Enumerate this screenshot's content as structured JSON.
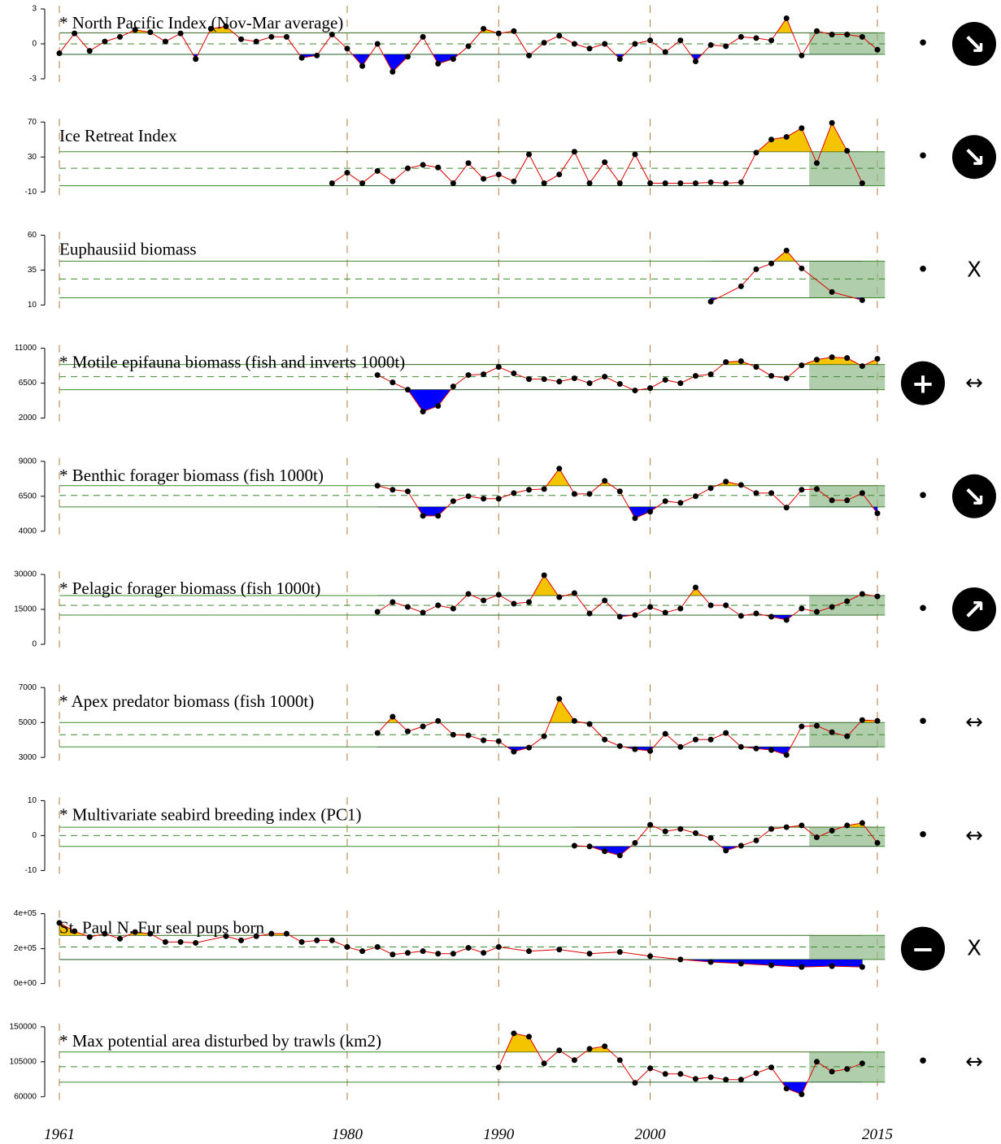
{
  "x_axis": {
    "xlim": [
      1961,
      2015
    ],
    "xticks": [
      1961,
      1980,
      1990,
      2000,
      2015
    ]
  },
  "chart_data": [
    {
      "type": "line",
      "title": "* North Pacific Index (Nov-Mar average)",
      "x": [
        1961,
        1962,
        1963,
        1964,
        1965,
        1966,
        1967,
        1968,
        1969,
        1970,
        1971,
        1972,
        1973,
        1974,
        1975,
        1976,
        1977,
        1978,
        1979,
        1980,
        1981,
        1982,
        1983,
        1984,
        1985,
        1986,
        1987,
        1988,
        1989,
        1990,
        1991,
        1992,
        1993,
        1994,
        1995,
        1996,
        1997,
        1998,
        1999,
        2000,
        2001,
        2002,
        2003,
        2004,
        2005,
        2006,
        2007,
        2008,
        2009,
        2010,
        2011,
        2012,
        2013,
        2014,
        2015
      ],
      "values": [
        -0.8,
        0.9,
        -0.6,
        0.2,
        0.6,
        1.2,
        1.0,
        0.2,
        0.9,
        -1.3,
        1.3,
        1.5,
        0.4,
        0.2,
        0.6,
        0.6,
        -1.2,
        -1.0,
        0.8,
        -0.4,
        -1.9,
        0.0,
        -2.4,
        -1.1,
        0.6,
        -1.7,
        -1.3,
        -0.2,
        1.3,
        0.9,
        1.1,
        -1.0,
        0.1,
        0.7,
        0.0,
        -0.4,
        0.0,
        -1.3,
        0.0,
        0.3,
        -0.7,
        0.3,
        -1.5,
        -0.1,
        -0.2,
        0.6,
        0.5,
        0.3,
        2.2,
        -1.0,
        1.1,
        0.8,
        0.8,
        0.6,
        -0.5
      ],
      "ylim": [
        -3,
        3
      ],
      "yticks": [
        -3,
        0,
        3
      ],
      "mean": 0,
      "upper": 0.95,
      "lower": -0.9,
      "status": {
        "symbol": "•",
        "circled": false
      },
      "trend": {
        "symbol": "↘",
        "circled": true
      }
    },
    {
      "type": "line",
      "title": "Ice Retreat Index",
      "x": [
        1979,
        1980,
        1981,
        1982,
        1983,
        1984,
        1985,
        1986,
        1987,
        1988,
        1989,
        1990,
        1991,
        1992,
        1993,
        1994,
        1995,
        1996,
        1997,
        1998,
        1999,
        2000,
        2001,
        2002,
        2003,
        2004,
        2005,
        2006,
        2007,
        2008,
        2009,
        2010,
        2011,
        2012,
        2013,
        2014
      ],
      "values": [
        0,
        12,
        0,
        14,
        2,
        17,
        21,
        18,
        0,
        23,
        5,
        10,
        2,
        33,
        0,
        10,
        36,
        0,
        24,
        0,
        33,
        0,
        0,
        0,
        0,
        1,
        0,
        1,
        35,
        50,
        53,
        63,
        23,
        69,
        37,
        0
      ],
      "ylim": [
        -10,
        70
      ],
      "yticks": [
        -10,
        30,
        70
      ],
      "mean": 17,
      "upper": 36,
      "lower": -3,
      "status": {
        "symbol": "•",
        "circled": false
      },
      "trend": {
        "symbol": "↘",
        "circled": true
      }
    },
    {
      "type": "line",
      "title": "Euphausiid biomass",
      "x": [
        2004,
        2006,
        2007,
        2008,
        2009,
        2010,
        2012,
        2014
      ],
      "values": [
        12.4,
        23.4,
        35.6,
        39.7,
        49,
        36.2,
        19.3,
        13.5
      ],
      "ylim": [
        10,
        60
      ],
      "yticks": [
        10,
        35,
        60
      ],
      "mean": 28.6,
      "upper": 41.4,
      "lower": 15.2,
      "status": {
        "symbol": "•",
        "circled": false
      },
      "trend": {
        "symbol": "X",
        "circled": false
      }
    },
    {
      "type": "line",
      "title": "* Motile epifauna biomass (fish and inverts 1000t)",
      "x": [
        1982,
        1983,
        1984,
        1985,
        1986,
        1987,
        1988,
        1989,
        1990,
        1991,
        1992,
        1993,
        1994,
        1995,
        1996,
        1997,
        1998,
        1999,
        2000,
        2001,
        2002,
        2003,
        2004,
        2005,
        2006,
        2007,
        2008,
        2009,
        2010,
        2011,
        2012,
        2013,
        2014,
        2015
      ],
      "values": [
        7550,
        6600,
        5660,
        2840,
        3570,
        6080,
        7550,
        7650,
        8590,
        7760,
        7020,
        7020,
        6710,
        7130,
        6500,
        7340,
        6400,
        5560,
        5870,
        6920,
        6500,
        7440,
        7650,
        9220,
        9330,
        8590,
        7440,
        7130,
        8800,
        9530,
        9850,
        9740,
        8700,
        9640
      ],
      "ylim": [
        2000,
        11000
      ],
      "yticks": [
        2000,
        6500,
        11000
      ],
      "mean": 7340,
      "upper": 8910,
      "lower": 5660,
      "status": {
        "symbol": "+",
        "circled": true
      },
      "trend": {
        "symbol": "↔",
        "circled": false
      }
    },
    {
      "type": "line",
      "title": "* Benthic forager biomass (fish 1000t)",
      "x": [
        1982,
        1983,
        1984,
        1985,
        1986,
        1987,
        1988,
        1989,
        1990,
        1991,
        1992,
        1993,
        1994,
        1995,
        1996,
        1997,
        1998,
        1999,
        2000,
        2001,
        2002,
        2003,
        2004,
        2005,
        2006,
        2007,
        2008,
        2009,
        2010,
        2011,
        2012,
        2013,
        2014,
        2015
      ],
      "values": [
        7260,
        6970,
        6850,
        5100,
        5100,
        6150,
        6500,
        6330,
        6330,
        6730,
        6970,
        7020,
        8480,
        6670,
        6670,
        7600,
        6850,
        4930,
        5400,
        6150,
        6030,
        6500,
        7080,
        7550,
        7310,
        6730,
        6730,
        5690,
        6970,
        7020,
        6210,
        6210,
        6730,
        5280
      ],
      "ylim": [
        4000,
        9000
      ],
      "yticks": [
        4000,
        6500,
        9000
      ],
      "mean": 6560,
      "upper": 7260,
      "lower": 5740,
      "status": {
        "symbol": "•",
        "circled": false
      },
      "trend": {
        "symbol": "↘",
        "circled": true
      }
    },
    {
      "type": "line",
      "title": "* Pelagic forager biomass (fish 1000t)",
      "x": [
        1982,
        1983,
        1984,
        1985,
        1986,
        1987,
        1988,
        1989,
        1990,
        1991,
        1992,
        1993,
        1994,
        1995,
        1996,
        1997,
        1998,
        1999,
        2000,
        2001,
        2002,
        2003,
        2004,
        2005,
        2006,
        2007,
        2008,
        2009,
        2010,
        2011,
        2012,
        2013,
        2014,
        2015
      ],
      "values": [
        13950,
        18140,
        16050,
        13600,
        16740,
        15350,
        21630,
        18840,
        21280,
        17440,
        18140,
        29650,
        20230,
        21980,
        13260,
        18840,
        11860,
        12560,
        16050,
        13600,
        15350,
        24420,
        16740,
        16740,
        12210,
        13260,
        11860,
        10470,
        15350,
        13950,
        16050,
        18490,
        21630,
        20580
      ],
      "ylim": [
        0,
        30000
      ],
      "yticks": [
        0,
        15000,
        30000
      ],
      "mean": 16740,
      "upper": 20930,
      "lower": 12560,
      "status": {
        "symbol": "•",
        "circled": false
      },
      "trend": {
        "symbol": "↗",
        "circled": true
      }
    },
    {
      "type": "line",
      "title": "* Apex predator biomass (fish 1000t)",
      "x": [
        1982,
        1983,
        1984,
        1985,
        1986,
        1987,
        1988,
        1989,
        1990,
        1991,
        1992,
        1993,
        1994,
        1995,
        1996,
        1997,
        1998,
        1999,
        2000,
        2001,
        2002,
        2003,
        2004,
        2005,
        2006,
        2007,
        2008,
        2009,
        2010,
        2011,
        2012,
        2013,
        2014,
        2015
      ],
      "values": [
        4400,
        5330,
        4490,
        4770,
        5090,
        4300,
        4260,
        3980,
        3930,
        3330,
        3560,
        4210,
        6350,
        5090,
        4910,
        4020,
        3650,
        3470,
        3370,
        4350,
        3600,
        4020,
        4020,
        4400,
        3600,
        3510,
        3420,
        3140,
        4770,
        4810,
        4440,
        4210,
        5140,
        5090
      ],
      "ylim": [
        3000,
        7000
      ],
      "yticks": [
        3000,
        5000,
        7000
      ],
      "mean": 4300,
      "upper": 5000,
      "lower": 3600,
      "status": {
        "symbol": "•",
        "circled": false
      },
      "trend": {
        "symbol": "↔",
        "circled": false
      }
    },
    {
      "type": "line",
      "title": "* Multivariate seabird breeding index (PC1)",
      "x": [
        1995,
        1996,
        1997,
        1998,
        1999,
        2000,
        2001,
        2002,
        2003,
        2004,
        2005,
        2006,
        2007,
        2008,
        2009,
        2010,
        2011,
        2012,
        2013,
        2014,
        2015
      ],
      "values": [
        -2.9,
        -3.1,
        -4.5,
        -5.7,
        -2.1,
        3.1,
        1.2,
        1.9,
        0.7,
        -0.7,
        -4.3,
        -2.9,
        -1.4,
        1.9,
        2.4,
        2.9,
        -0.5,
        1.4,
        2.9,
        3.6,
        -2.1
      ],
      "ylim": [
        -10,
        10
      ],
      "yticks": [
        -10,
        0,
        10
      ],
      "mean": 0,
      "upper": 2.4,
      "lower": -3.1,
      "status": {
        "symbol": "•",
        "circled": false
      },
      "trend": {
        "symbol": "↔",
        "circled": false
      }
    },
    {
      "type": "line",
      "title": "St. Paul N. Fur seal pups born",
      "x": [
        1961,
        1962,
        1963,
        1964,
        1965,
        1966,
        1967,
        1968,
        1969,
        1970,
        1972,
        1973,
        1974,
        1975,
        1976,
        1977,
        1978,
        1979,
        1980,
        1981,
        1982,
        1983,
        1984,
        1985,
        1986,
        1987,
        1988,
        1989,
        1990,
        1992,
        1994,
        1996,
        1998,
        2000,
        2002,
        2004,
        2006,
        2008,
        2010,
        2012,
        2014
      ],
      "values": [
        347600,
        300000,
        266700,
        285700,
        257100,
        295200,
        285700,
        238100,
        238100,
        233300,
        271400,
        247600,
        271400,
        285700,
        285700,
        238100,
        247600,
        247600,
        209500,
        185700,
        209500,
        166700,
        176200,
        185700,
        171400,
        171400,
        204800,
        176200,
        209500,
        185700,
        195200,
        171400,
        181000,
        157100,
        138100,
        123800,
        114300,
        104800,
        95200,
        100000,
        95200
      ],
      "ylim": [
        0,
        400000
      ],
      "yticks": [
        {
          "value": 0,
          "label": "0e+00"
        },
        {
          "value": 200000,
          "label": "2e+05"
        },
        {
          "value": 400000,
          "label": "4e+05"
        }
      ],
      "mean": 210000,
      "upper": 276000,
      "lower": 138000,
      "status": {
        "symbol": "−",
        "circled": true
      },
      "trend": {
        "symbol": "X",
        "circled": false
      }
    },
    {
      "type": "line",
      "title": "* Max potential area disturbed by trawls (km2)",
      "x": [
        1990,
        1991,
        1992,
        1993,
        1994,
        1995,
        1996,
        1997,
        1998,
        1999,
        2000,
        2001,
        2002,
        2003,
        2004,
        2005,
        2006,
        2007,
        2008,
        2009,
        2010,
        2011,
        2012,
        2013,
        2014
      ],
      "values": [
        97700,
        141600,
        137400,
        102900,
        119700,
        107100,
        121700,
        124900,
        107100,
        77800,
        96600,
        89300,
        89300,
        83000,
        85100,
        82000,
        82000,
        90300,
        97700,
        70500,
        63100,
        105000,
        92400,
        95600,
        102900
      ],
      "ylim": [
        60000,
        150000
      ],
      "yticks": [
        60000,
        105000,
        150000
      ],
      "mean": 98700,
      "upper": 117600,
      "lower": 78800,
      "status": {
        "symbol": "•",
        "circled": false
      },
      "trend": {
        "symbol": "↔",
        "circled": false
      }
    }
  ]
}
